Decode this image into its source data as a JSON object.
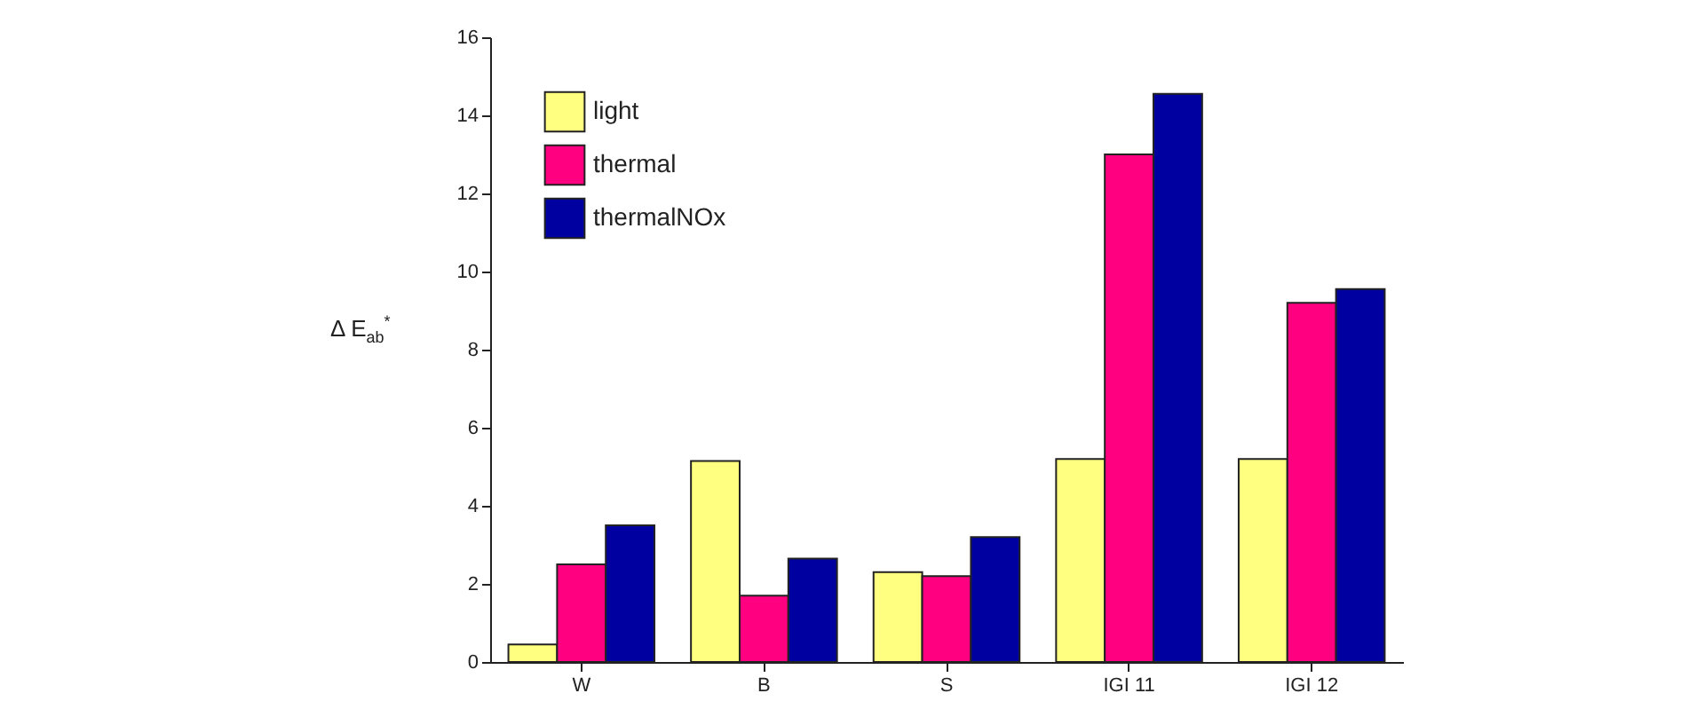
{
  "chart_data": {
    "type": "bar",
    "ylabel": "Δ E$_{ab}$$^{*}$",
    "categories": [
      "W",
      "B",
      "S",
      "IGI 11",
      "IGI 12"
    ],
    "series": [
      {
        "name": "light",
        "color": "#ffff80",
        "values": [
          0.45,
          5.15,
          2.3,
          5.2,
          5.2
        ]
      },
      {
        "name": "thermal",
        "color": "#ff0080",
        "values": [
          2.5,
          1.7,
          2.2,
          13.0,
          9.2
        ]
      },
      {
        "name": "thermalNOx",
        "color": "#0000a0",
        "values": [
          3.5,
          2.65,
          3.2,
          14.55,
          9.55
        ]
      }
    ],
    "ylim": [
      0,
      16
    ],
    "yticks": [
      0,
      2,
      4,
      6,
      8,
      10,
      12,
      14,
      16
    ],
    "grid": false,
    "legend": "top left"
  }
}
